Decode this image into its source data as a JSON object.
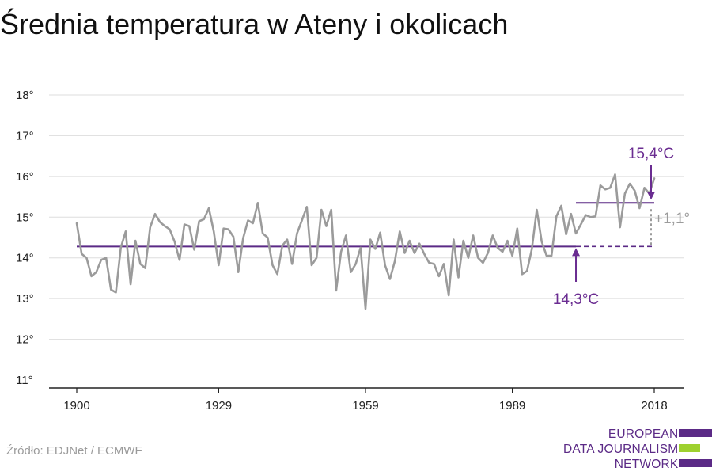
{
  "title": "Średnia temperatura w Ateny i okolicach",
  "source": "Źródło: EDJNet / ECMWF",
  "logo": {
    "lines": [
      "EUROPEAN",
      "DATA JOURNALISM",
      "NETWORK"
    ],
    "colors": {
      "purple": "#5b2a86",
      "green": "#9ed12f"
    }
  },
  "colors": {
    "series": "#9b9b9b",
    "baseline": "#5b2a86",
    "annotation_purple": "#6a2c91",
    "diff_gray": "#9b9b9b",
    "grid": "#dddddd",
    "axis": "#222222"
  },
  "chart_data": {
    "type": "line",
    "title": "Średnia temperatura w Ateny i okolicach",
    "xlabel": "",
    "ylabel": "",
    "xlim": [
      1900,
      2018
    ],
    "ylim": [
      11,
      18
    ],
    "x_ticks": [
      1900,
      1929,
      1959,
      1989,
      2018
    ],
    "x_tick_labels": [
      "1900",
      "1929",
      "1959",
      "1989",
      "2018"
    ],
    "y_ticks": [
      11,
      12,
      13,
      14,
      15,
      16,
      17,
      18
    ],
    "y_tick_labels": [
      "11°",
      "12°",
      "13°",
      "14°",
      "15°",
      "16°",
      "17°",
      "18°"
    ],
    "grid": true,
    "series": [
      {
        "x": [
          1900,
          1901,
          1902,
          1903,
          1904,
          1905,
          1906,
          1907,
          1908,
          1909,
          1910,
          1911,
          1912,
          1913,
          1914,
          1915,
          1916,
          1917,
          1918,
          1919,
          1920,
          1921,
          1922,
          1923,
          1924,
          1925,
          1926,
          1927,
          1928,
          1929,
          1930,
          1931,
          1932,
          1933,
          1934,
          1935,
          1936,
          1937,
          1938,
          1939,
          1940,
          1941,
          1942,
          1943,
          1944,
          1945,
          1946,
          1947,
          1948,
          1949,
          1950,
          1951,
          1952,
          1953,
          1954,
          1955,
          1956,
          1957,
          1958,
          1959,
          1960,
          1961,
          1962,
          1963,
          1964,
          1965,
          1966,
          1967,
          1968,
          1969,
          1970,
          1971,
          1972,
          1973,
          1974,
          1975,
          1976,
          1977,
          1978,
          1979,
          1980,
          1981,
          1982,
          1983,
          1984,
          1985,
          1986,
          1987,
          1988,
          1989,
          1990,
          1991,
          1992,
          1993,
          1994,
          1995,
          1996,
          1997,
          1998,
          1999,
          2000,
          2001,
          2002,
          2003,
          2004,
          2005,
          2006,
          2007,
          2008,
          2009,
          2010,
          2011,
          2012,
          2013,
          2014,
          2015,
          2016,
          2017,
          2018
        ],
        "values": [
          14.85,
          14.1,
          14.0,
          13.55,
          13.65,
          13.95,
          14.0,
          13.22,
          13.15,
          14.25,
          14.65,
          13.35,
          14.42,
          13.85,
          13.75,
          14.75,
          15.08,
          14.88,
          14.78,
          14.7,
          14.4,
          13.95,
          14.82,
          14.78,
          14.2,
          14.9,
          14.95,
          15.22,
          14.65,
          13.82,
          14.72,
          14.7,
          14.52,
          13.65,
          14.48,
          14.92,
          14.85,
          15.35,
          14.6,
          14.5,
          13.82,
          13.6,
          14.3,
          14.45,
          13.85,
          14.6,
          14.92,
          15.25,
          13.82,
          14.0,
          15.18,
          14.78,
          15.18,
          13.2,
          14.15,
          14.55,
          13.65,
          13.85,
          14.25,
          12.75,
          14.45,
          14.22,
          14.62,
          13.82,
          13.48,
          13.92,
          14.65,
          14.12,
          14.42,
          14.12,
          14.35,
          14.1,
          13.88,
          13.85,
          13.55,
          13.85,
          13.08,
          14.45,
          13.52,
          14.42,
          14.0,
          14.55,
          14.0,
          13.88,
          14.12,
          14.55,
          14.25,
          14.15,
          14.42,
          14.05,
          14.72,
          13.6,
          13.68,
          14.22,
          15.18,
          14.4,
          14.05,
          14.05,
          15.02,
          15.28,
          14.58,
          15.08,
          14.6,
          14.82,
          15.05,
          15.0,
          15.02,
          15.78,
          15.68,
          15.72,
          16.05,
          14.75,
          15.58,
          15.82,
          15.65,
          15.22,
          15.72,
          15.58,
          15.95
        ]
      }
    ],
    "annotations": {
      "baseline": {
        "label": "14,3°C",
        "value": 14.28,
        "from_year": 1900,
        "to_year": 2018
      },
      "recent": {
        "label": "15,4°C",
        "value": 15.35,
        "from_year": 2002,
        "to_year": 2018
      },
      "difference": {
        "label": "+1,1°"
      }
    }
  }
}
